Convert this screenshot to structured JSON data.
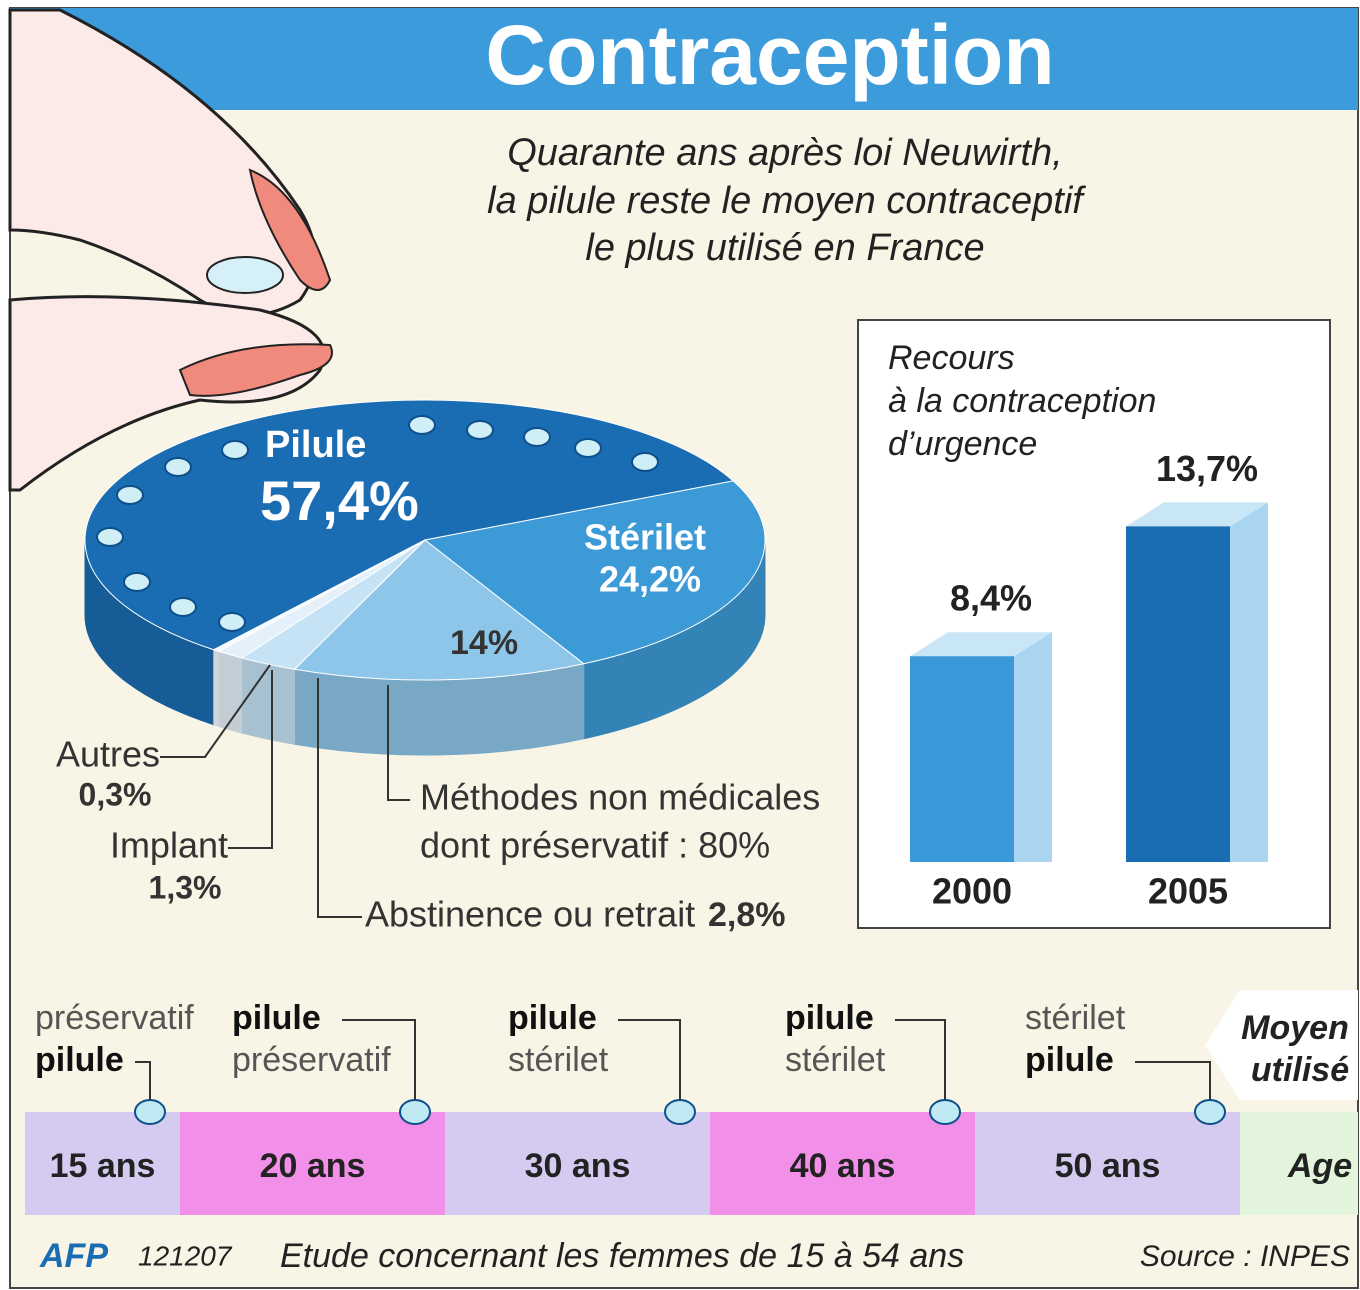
{
  "title": "Contraception",
  "subtitle": [
    "Quarante ans après loi Neuwirth,",
    "la pilule reste le moyen contraceptif",
    "le plus utilisé en France"
  ],
  "chart_data": [
    {
      "type": "pie",
      "categories": [
        "Pilule",
        "Stérilet",
        "Méthodes non médicales",
        "Abstinence ou retrait",
        "Implant",
        "Autres"
      ],
      "values": [
        57.4,
        24.2,
        14,
        2.8,
        1.3,
        0.3
      ],
      "value_labels": [
        "57,4%",
        "24,2%",
        "14%",
        "2,8%",
        "1,3%",
        "0,3%"
      ],
      "colors": [
        "#1a6db3",
        "#3c9ad6",
        "#8ec6ea",
        "#c6e3f5",
        "#e4f1fa",
        "#f4fafe"
      ],
      "annotations": [
        "dont préservatif : 80%"
      ]
    },
    {
      "type": "bar",
      "title": [
        "Recours",
        "à la contraception",
        "d’urgence"
      ],
      "categories": [
        "2000",
        "2005"
      ],
      "values": [
        8.4,
        13.7
      ],
      "value_labels": [
        "8,4%",
        "13,7%"
      ],
      "colors": [
        "#3a9ad9",
        "#1a6db3"
      ]
    }
  ],
  "timeline": {
    "items": [
      {
        "lines": [
          "préservatif",
          "pilule"
        ],
        "age": "15 ans"
      },
      {
        "lines": [
          "pilule",
          "préservatif"
        ],
        "age": "20 ans"
      },
      {
        "lines": [
          "pilule",
          "stérilet"
        ],
        "age": "30 ans"
      },
      {
        "lines": [
          "pilule",
          "stérilet"
        ],
        "age": "40 ans"
      },
      {
        "lines": [
          "stérilet",
          "pilule"
        ],
        "age": "50 ans"
      }
    ],
    "legend_lines": [
      "Moyen",
      "utilisé"
    ],
    "axis_label": "Age"
  },
  "footer": {
    "agency": "AFP",
    "code": "121207",
    "note": "Etude concernant les femmes de 15 à 54 ans",
    "source": "Source : INPES"
  }
}
